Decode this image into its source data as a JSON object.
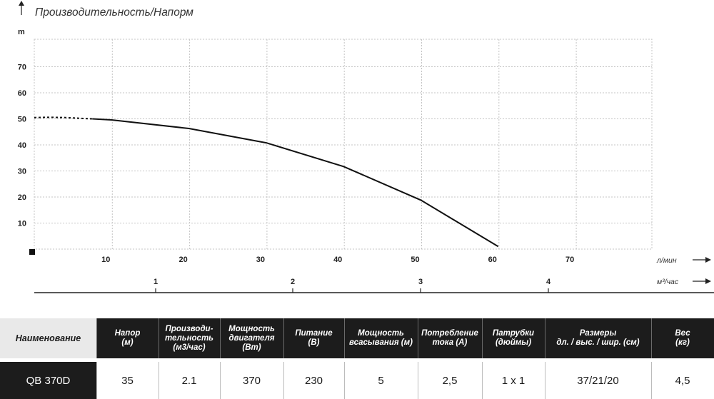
{
  "chart_data": {
    "type": "line",
    "title": "Производительность/Напорм",
    "ylabel": "m",
    "y_ticks": [
      "10",
      "20",
      "30",
      "40",
      "50",
      "60",
      "70"
    ],
    "x_ticks": [
      "10",
      "20",
      "30",
      "40",
      "50",
      "60",
      "70"
    ],
    "x_unit": "л/мин",
    "x2_ticks": [
      "1",
      "2",
      "3",
      "4"
    ],
    "x2_unit": "м³/час",
    "xlim": [
      0,
      70
    ],
    "ylim": [
      0,
      70
    ],
    "grid": true,
    "series": [
      {
        "dashed": [
          [
            0,
            50.5
          ],
          [
            2,
            50.6
          ],
          [
            4,
            50.5
          ],
          [
            6,
            50.2
          ],
          [
            7.5,
            50
          ]
        ],
        "solid": [
          [
            7.5,
            50
          ],
          [
            10,
            49.6
          ],
          [
            20,
            46.3
          ],
          [
            30,
            40.8
          ],
          [
            40,
            31.7
          ],
          [
            50,
            18.8
          ],
          [
            60,
            1
          ]
        ]
      }
    ]
  },
  "table": {
    "headers": [
      "Наименование",
      "Напор\n(м)",
      "Производи-\nтельность\n(м3/час)",
      "Мощность\nдвигателя\n(Вт)",
      "Питание\n(В)",
      "Мощность\nвсасывания (м)",
      "Потребление\nтока (А)",
      "Патрубки\n(дюймы)",
      "Размеры\nдл. / выс. / шир. (см)",
      "Вес\n(кг)"
    ],
    "row": [
      "QB 370D",
      "35",
      "2.1",
      "370",
      "230",
      "5",
      "2,5",
      "1 x 1",
      "37/21/20",
      "4,5"
    ]
  }
}
